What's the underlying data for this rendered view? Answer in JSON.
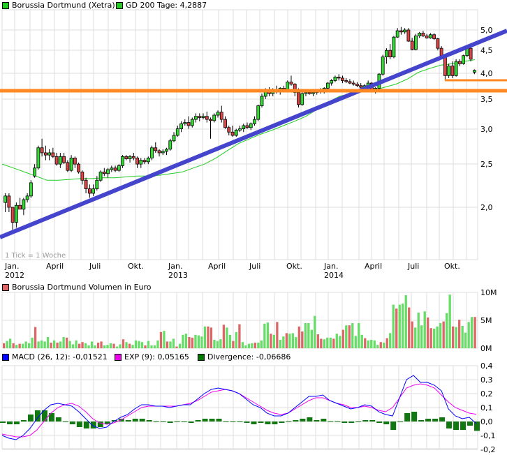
{
  "price_panel": {
    "legend": [
      {
        "label": "Borussia Dortmund (Xetra)",
        "color": "#22cc22"
      },
      {
        "label": "GD 200 Tage: 4,2887",
        "color": "#22cc22"
      }
    ],
    "tick_note": "1 Tick = 1 Woche",
    "y_ticks": [
      "5,0",
      "4,5",
      "4,0",
      "3,5",
      "3,0",
      "2,5",
      "2,0"
    ],
    "x_ticks": [
      {
        "label": "Jan.",
        "year": "2012"
      },
      {
        "label": "April",
        "year": ""
      },
      {
        "label": "Juli",
        "year": ""
      },
      {
        "label": "Okt.",
        "year": ""
      },
      {
        "label": "Jan.",
        "year": "2013"
      },
      {
        "label": "April",
        "year": ""
      },
      {
        "label": "Juli",
        "year": ""
      },
      {
        "label": "Okt.",
        "year": ""
      },
      {
        "label": "Jan.",
        "year": "2014"
      },
      {
        "label": "April",
        "year": ""
      },
      {
        "label": "Juli",
        "year": ""
      },
      {
        "label": "Okt.",
        "year": ""
      }
    ]
  },
  "volume_panel": {
    "legend": {
      "label": "Borussia Dortmund Volumen in Euro",
      "color": "#dd6666"
    },
    "y_ticks": [
      "10M",
      "5M",
      "0M"
    ]
  },
  "macd_panel": {
    "legend": [
      {
        "label": "MACD (26, 12): -0,01521",
        "color": "#0000ff"
      },
      {
        "label": "EXP (9): 0,05165",
        "color": "#ee00ee"
      },
      {
        "label": "Divergence: -0,06686",
        "color": "#007700"
      }
    ],
    "y_ticks": [
      "0,4",
      "0,3",
      "0,2",
      "0,1",
      "0,0",
      "-0,1",
      "-0,2"
    ]
  },
  "colors": {
    "up": "#33dd33",
    "down": "#dd4444",
    "vol_up": "#66dd66",
    "vol_down": "#dd6666",
    "vol_neutral": "#bbbbbb",
    "trendline": "#4444cc",
    "support": "#ff8822",
    "gd200": "#22cc22",
    "macd": "#0000ff",
    "signal": "#ee00ee",
    "divergence": "#117711",
    "grid": "#dddddd"
  },
  "chart_data": [
    {
      "type": "candlestick",
      "title": "Borussia Dortmund (Xetra)",
      "xlabel": "",
      "ylabel": "",
      "y_scale": "log",
      "ylim": [
        1.7,
        5.25
      ],
      "x_range": [
        "Jan. 2012",
        "Nov. 2014"
      ],
      "grid": true,
      "legend_position": "top-left",
      "annotations": [
        "1 Tick = 1 Woche",
        "GD 200 Tage: 4,2887"
      ],
      "ohlc_weekly_approx": [
        [
          2.05,
          2.15,
          1.95,
          2.12
        ],
        [
          2.12,
          2.15,
          1.95,
          2.0
        ],
        [
          2.0,
          2.0,
          1.78,
          1.85
        ],
        [
          1.85,
          2.05,
          1.8,
          2.02
        ],
        [
          2.02,
          2.1,
          1.98,
          1.98
        ],
        [
          1.98,
          2.1,
          1.92,
          2.08
        ],
        [
          2.08,
          2.15,
          2.05,
          2.12
        ],
        [
          2.12,
          2.3,
          2.1,
          2.27
        ],
        [
          2.35,
          2.5,
          2.33,
          2.45
        ],
        [
          2.45,
          2.75,
          2.43,
          2.72
        ],
        [
          2.72,
          2.85,
          2.6,
          2.65
        ],
        [
          2.65,
          2.75,
          2.55,
          2.62
        ],
        [
          2.62,
          2.7,
          2.55,
          2.65
        ],
        [
          2.65,
          2.72,
          2.58,
          2.6
        ],
        [
          2.6,
          2.65,
          2.48,
          2.5
        ],
        [
          2.5,
          2.65,
          2.45,
          2.6
        ],
        [
          2.6,
          2.65,
          2.5,
          2.52
        ],
        [
          2.52,
          2.55,
          2.4,
          2.42
        ],
        [
          2.42,
          2.62,
          2.4,
          2.58
        ],
        [
          2.58,
          2.6,
          2.45,
          2.5
        ],
        [
          2.5,
          2.52,
          2.38,
          2.4
        ],
        [
          2.4,
          2.42,
          2.25,
          2.3
        ],
        [
          2.3,
          2.33,
          2.15,
          2.2
        ],
        [
          2.2,
          2.25,
          2.1,
          2.15
        ],
        [
          2.15,
          2.25,
          2.12,
          2.2
        ],
        [
          2.2,
          2.35,
          2.18,
          2.3
        ],
        [
          2.3,
          2.42,
          2.28,
          2.4
        ],
        [
          2.4,
          2.45,
          2.35,
          2.38
        ],
        [
          2.38,
          2.45,
          2.33,
          2.43
        ],
        [
          2.43,
          2.48,
          2.4,
          2.45
        ],
        [
          2.45,
          2.48,
          2.4,
          2.42
        ],
        [
          2.42,
          2.5,
          2.4,
          2.48
        ],
        [
          2.48,
          2.62,
          2.45,
          2.6
        ],
        [
          2.6,
          2.62,
          2.55,
          2.57
        ],
        [
          2.57,
          2.62,
          2.52,
          2.6
        ],
        [
          2.6,
          2.65,
          2.55,
          2.58
        ],
        [
          2.58,
          2.6,
          2.45,
          2.5
        ],
        [
          2.5,
          2.58,
          2.45,
          2.55
        ],
        [
          2.55,
          2.58,
          2.5,
          2.53
        ],
        [
          2.53,
          2.6,
          2.5,
          2.58
        ],
        [
          2.58,
          2.75,
          2.55,
          2.72
        ],
        [
          2.72,
          2.8,
          2.65,
          2.68
        ],
        [
          2.68,
          2.7,
          2.6,
          2.65
        ],
        [
          2.65,
          2.7,
          2.62,
          2.67
        ],
        [
          2.67,
          2.72,
          2.62,
          2.7
        ],
        [
          2.7,
          2.85,
          2.68,
          2.82
        ],
        [
          2.82,
          2.95,
          2.8,
          2.9
        ],
        [
          2.9,
          3.05,
          2.88,
          3.0
        ],
        [
          3.0,
          3.12,
          2.95,
          3.08
        ],
        [
          3.08,
          3.15,
          3.05,
          3.1
        ],
        [
          3.1,
          3.2,
          3.0,
          3.05
        ],
        [
          3.05,
          3.18,
          3.02,
          3.15
        ],
        [
          3.15,
          3.25,
          3.1,
          3.2
        ],
        [
          3.2,
          3.25,
          3.12,
          3.18
        ],
        [
          3.18,
          3.25,
          3.15,
          3.2
        ],
        [
          3.2,
          3.28,
          3.1,
          3.15
        ],
        [
          3.15,
          3.18,
          2.85,
          3.13
        ],
        [
          3.13,
          3.25,
          3.1,
          3.22
        ],
        [
          3.22,
          3.3,
          3.18,
          3.27
        ],
        [
          3.27,
          3.38,
          3.1,
          3.15
        ],
        [
          3.15,
          3.2,
          3.0,
          3.02
        ],
        [
          3.02,
          3.05,
          2.9,
          2.95
        ],
        [
          2.95,
          3.05,
          2.88,
          2.9
        ],
        [
          2.9,
          3.0,
          2.88,
          2.98
        ],
        [
          2.98,
          3.05,
          2.95,
          3.0
        ],
        [
          3.0,
          3.08,
          2.95,
          3.05
        ],
        [
          3.05,
          3.1,
          3.0,
          3.02
        ],
        [
          3.02,
          3.1,
          2.98,
          3.08
        ],
        [
          3.08,
          3.2,
          3.05,
          3.15
        ],
        [
          3.15,
          3.4,
          3.12,
          3.38
        ],
        [
          3.38,
          3.6,
          3.35,
          3.55
        ],
        [
          3.55,
          3.7,
          3.5,
          3.65
        ],
        [
          3.65,
          3.72,
          3.55,
          3.6
        ],
        [
          3.6,
          3.7,
          3.55,
          3.68
        ],
        [
          3.68,
          3.75,
          3.6,
          3.63
        ],
        [
          3.63,
          3.72,
          3.58,
          3.7
        ],
        [
          3.7,
          3.75,
          3.62,
          3.65
        ],
        [
          3.65,
          3.85,
          3.62,
          3.82
        ],
        [
          3.82,
          3.95,
          3.75,
          3.78
        ],
        [
          3.78,
          3.8,
          3.55,
          3.62
        ],
        [
          3.62,
          3.7,
          3.35,
          3.4
        ],
        [
          3.4,
          3.65,
          3.38,
          3.6
        ],
        [
          3.6,
          3.65,
          3.55,
          3.62
        ],
        [
          3.62,
          3.68,
          3.58,
          3.6
        ],
        [
          3.6,
          3.65,
          3.55,
          3.62
        ],
        [
          3.62,
          3.68,
          3.58,
          3.65
        ],
        [
          3.65,
          3.7,
          3.6,
          3.63
        ],
        [
          3.63,
          3.72,
          3.6,
          3.7
        ],
        [
          3.7,
          3.82,
          3.68,
          3.8
        ],
        [
          3.8,
          3.88,
          3.75,
          3.85
        ],
        [
          3.85,
          3.95,
          3.82,
          3.92
        ],
        [
          3.92,
          3.98,
          3.85,
          3.9
        ],
        [
          3.9,
          3.95,
          3.8,
          3.85
        ],
        [
          3.85,
          3.9,
          3.8,
          3.83
        ],
        [
          3.83,
          3.88,
          3.78,
          3.8
        ],
        [
          3.8,
          3.85,
          3.75,
          3.78
        ],
        [
          3.78,
          3.82,
          3.72,
          3.75
        ],
        [
          3.75,
          3.8,
          3.68,
          3.72
        ],
        [
          3.72,
          3.78,
          3.65,
          3.75
        ],
        [
          3.75,
          3.85,
          3.7,
          3.8
        ],
        [
          3.8,
          3.82,
          3.62,
          3.65
        ],
        [
          3.65,
          3.72,
          3.6,
          3.7
        ],
        [
          3.7,
          4.0,
          3.68,
          3.98
        ],
        [
          3.98,
          4.4,
          3.95,
          4.35
        ],
        [
          4.35,
          4.55,
          4.2,
          4.5
        ],
        [
          4.5,
          4.65,
          4.3,
          4.35
        ],
        [
          4.35,
          4.85,
          4.32,
          4.82
        ],
        [
          4.82,
          5.05,
          4.8,
          4.98
        ],
        [
          4.98,
          5.08,
          4.88,
          4.95
        ],
        [
          4.95,
          5.05,
          4.9,
          5.0
        ],
        [
          5.0,
          5.05,
          4.7,
          4.72
        ],
        [
          4.72,
          4.8,
          4.5,
          4.52
        ],
        [
          4.52,
          4.9,
          4.5,
          4.85
        ],
        [
          4.85,
          4.95,
          4.8,
          4.92
        ],
        [
          4.92,
          4.98,
          4.82,
          4.85
        ],
        [
          4.85,
          4.9,
          4.78,
          4.8
        ],
        [
          4.8,
          4.92,
          4.78,
          4.88
        ],
        [
          4.88,
          4.92,
          4.75,
          4.78
        ],
        [
          4.78,
          4.8,
          4.5,
          4.55
        ],
        [
          4.55,
          4.6,
          4.3,
          4.35
        ],
        [
          4.35,
          4.38,
          3.85,
          3.95
        ],
        [
          3.95,
          4.2,
          3.9,
          4.15
        ],
        [
          4.15,
          4.25,
          3.9,
          3.95
        ],
        [
          3.95,
          4.3,
          3.93,
          4.25
        ],
        [
          4.25,
          4.3,
          4.15,
          4.2
        ],
        [
          4.2,
          4.4,
          4.18,
          4.38
        ],
        [
          4.38,
          4.6,
          4.35,
          4.55
        ],
        [
          4.55,
          4.58,
          4.25,
          4.3
        ],
        [
          4.02,
          4.08,
          3.98,
          4.06
        ]
      ],
      "gd200_approx": [
        2.5,
        2.45,
        2.4,
        2.35,
        2.3,
        2.3,
        2.31,
        2.32,
        2.32,
        2.33,
        2.33,
        2.34,
        2.35,
        2.35,
        2.36,
        2.38,
        2.4,
        2.45,
        2.5,
        2.58,
        2.68,
        2.78,
        2.85,
        2.92,
        2.98,
        3.05,
        3.12,
        3.2,
        3.32,
        3.45,
        3.55,
        3.6,
        3.63,
        3.66,
        3.72,
        3.78,
        3.88,
        4.02,
        4.1,
        4.17,
        4.2,
        4.25,
        4.29
      ],
      "overlays": [
        {
          "name": "Trendlinie",
          "type": "line",
          "from": [
            0,
            1.78
          ],
          "to": [
            127,
            4.95
          ],
          "color": "#4444cc"
        },
        {
          "name": "Unterstützung",
          "type": "hline",
          "value": 3.63,
          "color": "#ff8822"
        },
        {
          "name": "Unterstützung kurz",
          "type": "hline",
          "value": 3.87,
          "from_week": 117,
          "color": "#ff8822"
        }
      ]
    },
    {
      "type": "bar",
      "title": "Borussia Dortmund Volumen in Euro",
      "ylabel": "",
      "ylim": [
        0,
        10
      ],
      "unit": "M",
      "values_approx": [
        0.9,
        1.3,
        1.7,
        0.9,
        0.6,
        0.8,
        0.8,
        1.2,
        0.9,
        1.9,
        3.8,
        1.2,
        1.4,
        1.2,
        2.0,
        1.0,
        1.4,
        1.0,
        1.2,
        2.0,
        1.9,
        1.3,
        0.7,
        1.4,
        0.8,
        1.1,
        0.9,
        0.5,
        1.2,
        0.5,
        1.0,
        1.2,
        0.5,
        0.6,
        0.9,
        0.8,
        0.3,
        0.7,
        1.6,
        1.1,
        0.8,
        0.6,
        1.4,
        1.3,
        1.1,
        0.5,
        1.3,
        0.5,
        0.5,
        1.4,
        2.9,
        3.1,
        1.2,
        1.2,
        1.7,
        0.3,
        0.8,
        2.4,
        2.6,
        2.0,
        1.9,
        2.4,
        2.3,
        2.1,
        3.9,
        3.9,
        3.7,
        1.5,
        1.3,
        1.6,
        4.2,
        3.7,
        2.4,
        1.3,
        2.9,
        4.3,
        1.1,
        0.5,
        0.8,
        0.9,
        1.0,
        1.0,
        1.4,
        4.4,
        4.6,
        2.6,
        2.4,
        4.7,
        1.5,
        2.1,
        2.7,
        2.6,
        2.7,
        2.0,
        3.9,
        3.0,
        4.5,
        4.5,
        3.3,
        5.8,
        2.5,
        1.7,
        1.6,
        1.9,
        1.9,
        1.7,
        2.6,
        2.2,
        3.3,
        4.1,
        4.1,
        4.5,
        2.2,
        4.5,
        2.4,
        1.8,
        1.4,
        1.5,
        1.4,
        0.6,
        1.1,
        1.0,
        1.8,
        2.7,
        7.8,
        7.1,
        7.8,
        8.0,
        9.5,
        7.3,
        4.8,
        3.7,
        6.4,
        4.1,
        6.6,
        5.5,
        3.6,
        3.5,
        3.9,
        4.5,
        4.8,
        6.3,
        9.6,
        3.9,
        3.8,
        5.1,
        4.0,
        2.8,
        4.7,
        5.6,
        5.6
      ]
    },
    {
      "type": "line",
      "title": "MACD",
      "ylim": [
        -0.2,
        0.4
      ],
      "series": [
        {
          "name": "MACD (26, 12)",
          "last": -0.01521,
          "values_approx": [
            -0.1,
            -0.12,
            -0.13,
            -0.1,
            -0.05,
            0.02,
            0.08,
            0.12,
            0.13,
            0.12,
            0.11,
            0.07,
            0.02,
            -0.03,
            -0.05,
            -0.04,
            0.0,
            0.03,
            0.05,
            0.09,
            0.12,
            0.12,
            0.11,
            0.11,
            0.1,
            0.11,
            0.12,
            0.12,
            0.16,
            0.2,
            0.23,
            0.24,
            0.23,
            0.22,
            0.2,
            0.16,
            0.12,
            0.1,
            0.06,
            0.04,
            0.04,
            0.06,
            0.1,
            0.14,
            0.18,
            0.18,
            0.19,
            0.15,
            0.13,
            0.11,
            0.09,
            0.1,
            0.12,
            0.11,
            0.07,
            0.05,
            0.04,
            0.17,
            0.3,
            0.33,
            0.28,
            0.28,
            0.26,
            0.22,
            0.09,
            0.04,
            0.02,
            0.03,
            -0.015
          ]
        },
        {
          "name": "EXP (9)",
          "last": 0.05165,
          "values_approx": [
            -0.09,
            -0.1,
            -0.11,
            -0.11,
            -0.1,
            -0.06,
            0.0,
            0.06,
            0.1,
            0.12,
            0.13,
            0.11,
            0.07,
            0.02,
            -0.01,
            -0.02,
            -0.01,
            0.01,
            0.04,
            0.07,
            0.1,
            0.11,
            0.11,
            0.11,
            0.11,
            0.11,
            0.12,
            0.13,
            0.15,
            0.18,
            0.21,
            0.22,
            0.23,
            0.22,
            0.2,
            0.17,
            0.14,
            0.11,
            0.08,
            0.06,
            0.05,
            0.06,
            0.09,
            0.12,
            0.15,
            0.17,
            0.17,
            0.15,
            0.13,
            0.12,
            0.1,
            0.1,
            0.11,
            0.1,
            0.08,
            0.07,
            0.1,
            0.17,
            0.24,
            0.26,
            0.27,
            0.26,
            0.24,
            0.19,
            0.14,
            0.1,
            0.08,
            0.06,
            0.052
          ]
        },
        {
          "name": "Divergence",
          "last": -0.06686,
          "type": "bar"
        }
      ]
    }
  ]
}
